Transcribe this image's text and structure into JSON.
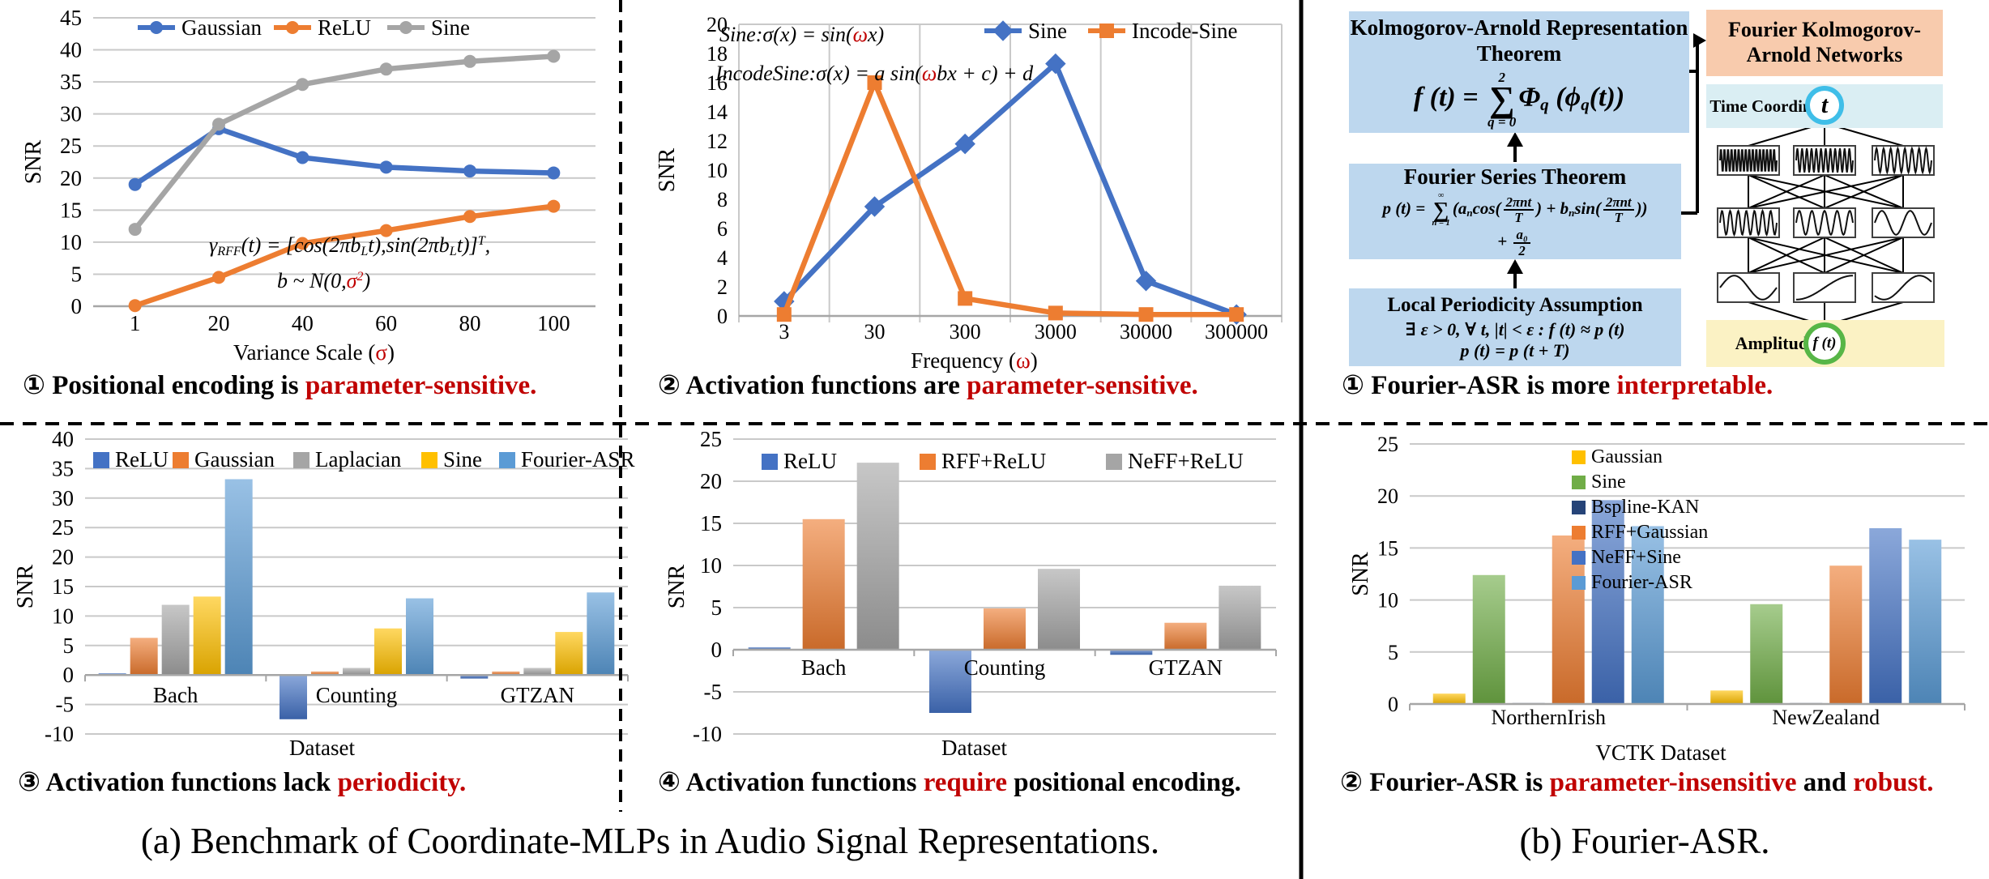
{
  "captions": {
    "pe_sensitive": [
      {
        "t": "① Positional encoding is "
      },
      {
        "t": "parameter-sensitive.",
        "red": true
      }
    ],
    "act_sensitive": [
      {
        "t": "② Activation functions are "
      },
      {
        "t": "parameter-sensitive.",
        "red": true
      }
    ],
    "interpretable": [
      {
        "t": "①  Fourier-ASR is more "
      },
      {
        "t": "interpretable.",
        "red": true
      }
    ],
    "periodicity": [
      {
        "t": "③ Activation functions lack "
      },
      {
        "t": "periodicity.",
        "red": true
      }
    ],
    "require_pe": [
      {
        "t": "④ Activation functions "
      },
      {
        "t": "require",
        "red": true
      },
      {
        "t": " positional encoding."
      }
    ],
    "robust": [
      {
        "t": "② Fourier-ASR is "
      },
      {
        "t": "parameter-insensitive",
        "red": true
      },
      {
        "t": " and "
      },
      {
        "t": "robust.",
        "red": true
      }
    ],
    "panel_a": "(a) Benchmark of Coordinate-MLPs in Audio Signal Representations.",
    "panel_b": "(b) Fourier-ASR."
  },
  "colors": {
    "blue": "#4472C4",
    "orange": "#ED7D31",
    "gray": "#A5A5A5",
    "yellow": "#FFC000",
    "light_blue": "#5B9BD5",
    "green": "#70AD47",
    "navy": "#264478",
    "red_text": "#C00000",
    "grid": "#C9C9C9",
    "axis": "#A6A6A6",
    "divider": "#000000"
  },
  "chart_data": [
    {
      "id": "variance-line",
      "type": "line",
      "ylabel": "SNR",
      "ylim": [
        0,
        45
      ],
      "ytick": 5,
      "grid": "horizontal",
      "legend_position": "top",
      "xlabel": [
        {
          "t": "Variance Scale ("
        },
        {
          "t": "σ",
          "red": true
        },
        {
          "t": ")"
        }
      ],
      "categories": [
        "1",
        "20",
        "40",
        "60",
        "80",
        "100"
      ],
      "series": [
        {
          "name": "Gaussian",
          "color": "#4472C4",
          "marker": "circle",
          "values": [
            19,
            27.7,
            23.2,
            21.7,
            21.1,
            20.8
          ]
        },
        {
          "name": "ReLU",
          "color": "#ED7D31",
          "marker": "circle",
          "values": [
            0.1,
            4.5,
            9.8,
            11.8,
            14,
            15.6
          ]
        },
        {
          "name": "Sine",
          "color": "#A5A5A5",
          "marker": "circle",
          "values": [
            12,
            28.4,
            34.6,
            37,
            38.2,
            39
          ]
        }
      ],
      "annotations": [
        {
          "segments": [
            {
              "t": "γ"
            },
            {
              "t": "RFF",
              "sub": true
            },
            {
              "t": "(t) = [cos(2π"
            },
            {
              "t": "b"
            },
            {
              "t": "L",
              "sub": true
            },
            {
              "t": "t),sin(2π"
            },
            {
              "t": "b"
            },
            {
              "t": "L",
              "sub": true
            },
            {
              "t": "t)]"
            },
            {
              "t": "T",
              "sup": true
            },
            {
              "t": ","
            }
          ]
        },
        {
          "segments": [
            {
              "t": "b ~ N(0,"
            },
            {
              "t": "σ",
              "red": true
            },
            {
              "t": "2",
              "sup": true,
              "red": true
            },
            {
              "t": ")"
            }
          ]
        }
      ]
    },
    {
      "id": "frequency-line",
      "type": "line",
      "ylabel": "SNR",
      "ylim": [
        0,
        20
      ],
      "ytick": 2,
      "grid": "vertical",
      "legend_position": "top-right",
      "xlabel": [
        {
          "t": "Frequency ("
        },
        {
          "t": "ω",
          "red": true
        },
        {
          "t": ")"
        }
      ],
      "categories": [
        "3",
        "30",
        "300",
        "3000",
        "30000",
        "300000"
      ],
      "series": [
        {
          "name": "Sine",
          "color": "#4472C4",
          "marker": "diamond",
          "values": [
            1,
            7.5,
            11.8,
            17.3,
            2.4,
            0.1
          ]
        },
        {
          "name": "Incode-Sine",
          "color": "#ED7D31",
          "marker": "square",
          "values": [
            0.1,
            16,
            1.2,
            0.2,
            0.1,
            0.1
          ]
        }
      ],
      "annotations": [
        {
          "segments": [
            {
              "t": "Sine:σ(x) = sin("
            },
            {
              "t": "ω",
              "red": true
            },
            {
              "t": "x)"
            }
          ]
        },
        {
          "segments": [
            {
              "t": "IncodeSine:σ(x) = a sin("
            },
            {
              "t": "ω",
              "red": true
            },
            {
              "t": "bx + c) + d"
            }
          ]
        }
      ]
    },
    {
      "id": "activation-bar",
      "type": "bar",
      "ylabel": "SNR",
      "ylim": [
        -10,
        40
      ],
      "ytick": 5,
      "legend_position": "top",
      "xlabel": [
        {
          "t": "Dataset"
        }
      ],
      "categories": [
        "Bach",
        "Counting",
        "GTZAN"
      ],
      "series": [
        {
          "name": "ReLU",
          "color": "#4472C4",
          "values": [
            0.3,
            -7.5,
            -0.6
          ]
        },
        {
          "name": "Gaussian",
          "color": "#ED7D31",
          "values": [
            6.3,
            0.6,
            0.6
          ]
        },
        {
          "name": "Laplacian",
          "color": "#A5A5A5",
          "values": [
            11.9,
            1.2,
            1.2
          ]
        },
        {
          "name": "Sine",
          "color": "#FFC000",
          "values": [
            13.3,
            7.9,
            7.3
          ]
        },
        {
          "name": "Fourier-ASR",
          "color": "#5B9BD5",
          "values": [
            33.2,
            13,
            14
          ]
        }
      ],
      "annotations": []
    },
    {
      "id": "positional-bar",
      "type": "bar",
      "ylabel": "SNR",
      "ylim": [
        -10,
        25
      ],
      "ytick": 5,
      "legend_position": "top",
      "xlabel": [
        {
          "t": "Dataset"
        }
      ],
      "categories": [
        "Bach",
        "Counting",
        "GTZAN"
      ],
      "series": [
        {
          "name": "ReLU",
          "color": "#4472C4",
          "values": [
            0.3,
            -7.5,
            -0.6
          ]
        },
        {
          "name": "RFF+ReLU",
          "color": "#ED7D31",
          "values": [
            15.5,
            4.9,
            3.2
          ]
        },
        {
          "name": "NeFF+ReLU",
          "color": "#A5A5A5",
          "values": [
            22.2,
            9.6,
            7.6
          ]
        }
      ],
      "annotations": []
    },
    {
      "id": "vctk-bar",
      "type": "bar",
      "ylabel": "SNR",
      "ylim": [
        0,
        25
      ],
      "ytick": 5,
      "legend_position": "right",
      "xlabel": [
        {
          "t": "VCTK Dataset"
        }
      ],
      "categories": [
        "NorthernIrish",
        "NewZealand"
      ],
      "series": [
        {
          "name": "Gaussian",
          "color": "#FFC000",
          "values": [
            1,
            1.3
          ]
        },
        {
          "name": "Sine",
          "color": "#70AD47",
          "values": [
            12.4,
            9.6
          ]
        },
        {
          "name": "Bspline-KAN",
          "color": "#264478",
          "values": [
            0.1,
            0.1
          ]
        },
        {
          "name": "RFF+Gaussian",
          "color": "#ED7D31",
          "values": [
            16.2,
            13.3
          ]
        },
        {
          "name": "NeFF+Sine",
          "color": "#4472C4",
          "values": [
            19.6,
            16.9
          ]
        },
        {
          "name": "Fourier-ASR",
          "color": "#5B9BD5",
          "values": [
            17.1,
            15.8
          ]
        }
      ],
      "annotations": []
    }
  ],
  "diagram": {
    "kart_title": "Kolmogorov-Arnold Representation Theorem",
    "kart_formula": [
      {
        "t": "f (t) = "
      },
      {
        "stack": [
          "2",
          "∑",
          "q = 0"
        ]
      },
      {
        "t": "Φ"
      },
      {
        "t": "q",
        "sub": true
      },
      {
        "t": " (ϕ"
      },
      {
        "t": "q",
        "sub": true
      },
      {
        "t": "(t))"
      }
    ],
    "fourier_title": "Fourier Series Theorem",
    "fourier_formula": [
      {
        "t": "p (t) = "
      },
      {
        "stack": [
          "∞",
          "∑",
          "n = 1"
        ]
      },
      {
        "t": "("
      },
      {
        "t": "a"
      },
      {
        "t": "n",
        "sub": true
      },
      {
        "t": "cos("
      },
      {
        "frac": [
          "2πnt",
          "T"
        ]
      },
      {
        "t": ") + "
      },
      {
        "t": "b"
      },
      {
        "t": "n",
        "sub": true
      },
      {
        "t": "sin("
      },
      {
        "frac": [
          "2πnt",
          "T"
        ]
      },
      {
        "t": "))"
      }
    ],
    "fourier_formula2": [
      {
        "t": "+ "
      },
      {
        "frac": [
          "a₀",
          "2"
        ]
      }
    ],
    "local_title": "Local Periodicity Assumption",
    "local_f1": [
      {
        "t": "∃ ε > 0, ∀ t, |t| < ε : f (t) ≈ p (t)"
      }
    ],
    "local_f2": [
      {
        "t": "p (t) = p (t + T)"
      }
    ],
    "fkan_title": "Fourier Kolmogorov-Arnold Networks",
    "time_label": "Time Coordinates",
    "time_node": "t",
    "amp_label": "Amplitudes",
    "amp_node": "f (t)",
    "colors": {
      "theorem_box": "#BDD7EE",
      "fkan_box": "#F8CBAD",
      "time_box": "#DAEEF3",
      "amp_box": "#FBF2C4",
      "t_ring": "#3FBEE8",
      "ft_ring": "#57B647"
    }
  }
}
